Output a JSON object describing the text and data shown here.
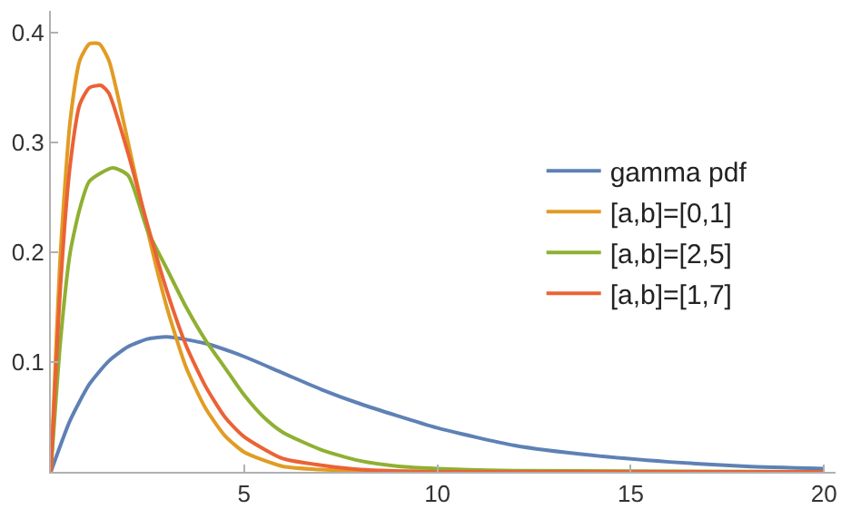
{
  "chart_data": {
    "type": "line",
    "xlim": [
      0,
      20.3
    ],
    "ylim": [
      0,
      0.42
    ],
    "xticks": [
      5,
      10,
      15,
      20
    ],
    "yticks": [
      0.1,
      0.2,
      0.3,
      0.4
    ],
    "legend": "right",
    "marker": "none",
    "line_style": "solid",
    "series": [
      {
        "name": "gamma pdf",
        "color": "#5e81b5",
        "x": [
          0,
          0.5,
          1,
          1.5,
          2,
          2.5,
          3,
          4,
          5,
          6,
          7,
          8,
          10,
          12,
          14,
          16,
          18,
          20
        ],
        "values": [
          0,
          0.047,
          0.08,
          0.101,
          0.114,
          0.121,
          0.123,
          0.117,
          0.105,
          0.09,
          0.075,
          0.062,
          0.04,
          0.024,
          0.015,
          0.009,
          0.005,
          0.003
        ]
      },
      {
        "name": "[a,b]=[0,1]",
        "color": "#e19c24",
        "x": [
          0,
          0.25,
          0.5,
          0.75,
          1,
          1.25,
          1.5,
          2,
          2.5,
          3,
          3.5,
          4,
          4.5,
          5,
          6,
          7,
          8,
          10,
          20
        ],
        "values": [
          0,
          0.2,
          0.32,
          0.375,
          0.39,
          0.39,
          0.375,
          0.3,
          0.22,
          0.15,
          0.095,
          0.058,
          0.033,
          0.018,
          0.005,
          0.002,
          0.001,
          0,
          0
        ]
      },
      {
        "name": "[a,b]=[2,5]",
        "color": "#8fb032",
        "x": [
          0,
          0.25,
          0.5,
          0.75,
          1,
          1.6,
          2,
          2.5,
          3,
          3.5,
          4,
          4.5,
          5,
          5.5,
          6,
          7,
          8,
          9,
          10,
          12,
          20
        ],
        "values": [
          0,
          0.12,
          0.2,
          0.24,
          0.265,
          0.277,
          0.27,
          0.22,
          0.185,
          0.15,
          0.12,
          0.095,
          0.07,
          0.05,
          0.036,
          0.02,
          0.01,
          0.005,
          0.003,
          0.001,
          0
        ]
      },
      {
        "name": "[a,b]=[1,7]",
        "color": "#eb6235",
        "x": [
          0,
          0.25,
          0.5,
          0.75,
          1,
          1.3,
          1.5,
          2,
          2.5,
          3,
          3.5,
          4,
          4.5,
          5,
          6,
          7,
          8,
          10,
          20
        ],
        "values": [
          0,
          0.17,
          0.28,
          0.335,
          0.35,
          0.352,
          0.345,
          0.29,
          0.225,
          0.165,
          0.115,
          0.078,
          0.05,
          0.032,
          0.012,
          0.006,
          0.002,
          0,
          0
        ]
      }
    ]
  }
}
